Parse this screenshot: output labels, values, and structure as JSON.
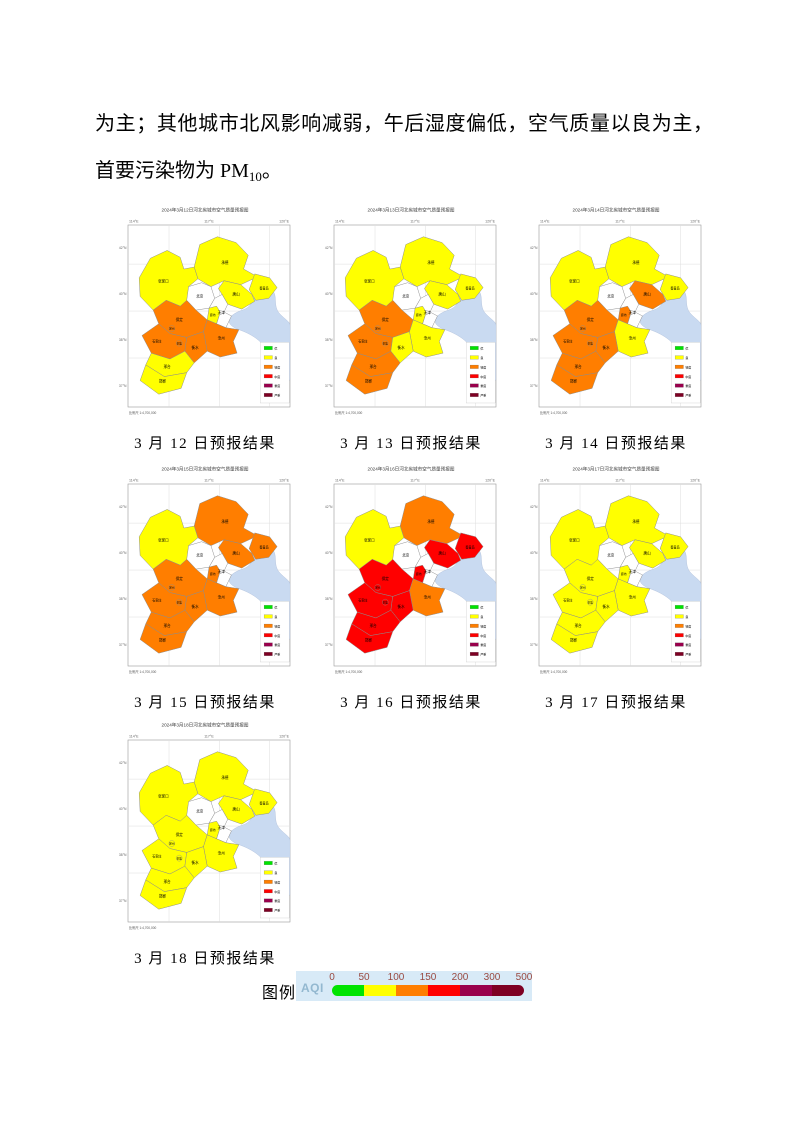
{
  "page": {
    "paragraph": {
      "line1": "为主；其他城市北风影响减弱，午后湿度偏低，空气质量以良为主，",
      "line2_prefix": "首要污染物为 PM",
      "line2_subscript": "10",
      "line2_suffix": "。"
    }
  },
  "aqi_level_colors": {
    "优": "#00E400",
    "良": "#FFFF00",
    "轻度污染": "#FF7E00",
    "中度污染": "#FF0000",
    "重度污染": "#99004C",
    "严重污染": "#7E0023",
    "无": "#FFFFFF"
  },
  "map_common": {
    "axis_top": [
      "114°E",
      "117°E",
      "120°E"
    ],
    "axis_left": [
      "42°N",
      "40°N",
      "38°N",
      "37°N"
    ],
    "scale_note": "比例尺 1:4,700,000",
    "sea_color": "#C9DAF1",
    "mini_legend": [
      {
        "label": "优",
        "color": "#00E400"
      },
      {
        "label": "良",
        "color": "#FFFF00"
      },
      {
        "label": "轻度",
        "color": "#FF7E00"
      },
      {
        "label": "中度",
        "color": "#FF0000"
      },
      {
        "label": "重度",
        "color": "#99004C"
      },
      {
        "label": "严重",
        "color": "#7E0023"
      }
    ],
    "cities": {
      "zhangjiakou": "张家口",
      "chengde": "承德",
      "beijing": "北京",
      "tianjin": "天津",
      "tangshan": "唐山",
      "qinhuangdao": "秦皇岛",
      "langfang": "廊坊",
      "baoding": "保定",
      "cangzhou": "沧州",
      "shijiazhuang": "石家庄",
      "hengshui": "衡水",
      "xingtai": "邢台",
      "handan": "邯郸"
    },
    "sub_city_labels": [
      "定州",
      "辛集"
    ]
  },
  "maps": [
    {
      "title": "2024年3月12日河北省城市空气质量预报图",
      "caption": "3 月 12 日预报结果",
      "levels": {
        "zhangjiakou": "良",
        "chengde": "良",
        "beijing": "无",
        "tianjin": "无",
        "tangshan": "良",
        "qinhuangdao": "良",
        "langfang": "良",
        "baoding": "轻度污染",
        "cangzhou": "轻度污染",
        "shijiazhuang": "轻度污染",
        "hengshui": "轻度污染",
        "xingtai": "良",
        "handan": "良"
      }
    },
    {
      "title": "2024年3月13日河北省城市空气质量预报图",
      "caption": "3 月 13 日预报结果",
      "levels": {
        "zhangjiakou": "良",
        "chengde": "良",
        "beijing": "无",
        "tianjin": "无",
        "tangshan": "良",
        "qinhuangdao": "良",
        "langfang": "良",
        "baoding": "轻度污染",
        "cangzhou": "良",
        "shijiazhuang": "轻度污染",
        "hengshui": "良",
        "xingtai": "轻度污染",
        "handan": "轻度污染"
      }
    },
    {
      "title": "2024年3月14日河北省城市空气质量预报图",
      "caption": "3 月 14 日预报结果",
      "levels": {
        "zhangjiakou": "良",
        "chengde": "良",
        "beijing": "无",
        "tianjin": "无",
        "tangshan": "轻度污染",
        "qinhuangdao": "良",
        "langfang": "轻度污染",
        "baoding": "轻度污染",
        "cangzhou": "良",
        "shijiazhuang": "轻度污染",
        "hengshui": "轻度污染",
        "xingtai": "轻度污染",
        "handan": "轻度污染"
      }
    },
    {
      "title": "2024年3月15日河北省城市空气质量预报图",
      "caption": "3 月 15 日预报结果",
      "levels": {
        "zhangjiakou": "良",
        "chengde": "轻度污染",
        "beijing": "无",
        "tianjin": "无",
        "tangshan": "轻度污染",
        "qinhuangdao": "轻度污染",
        "langfang": "轻度污染",
        "baoding": "轻度污染",
        "cangzhou": "轻度污染",
        "shijiazhuang": "轻度污染",
        "hengshui": "轻度污染",
        "xingtai": "轻度污染",
        "handan": "轻度污染"
      }
    },
    {
      "title": "2024年3月16日河北省城市空气质量预报图",
      "caption": "3 月 16 日预报结果",
      "levels": {
        "zhangjiakou": "良",
        "chengde": "轻度污染",
        "beijing": "无",
        "tianjin": "无",
        "tangshan": "中度污染",
        "qinhuangdao": "中度污染",
        "langfang": "中度污染",
        "baoding": "中度污染",
        "cangzhou": "轻度污染",
        "shijiazhuang": "中度污染",
        "hengshui": "中度污染",
        "xingtai": "中度污染",
        "handan": "中度污染"
      }
    },
    {
      "title": "2024年3月17日河北省城市空气质量预报图",
      "caption": "3 月 17 日预报结果",
      "levels": {
        "zhangjiakou": "良",
        "chengde": "良",
        "beijing": "无",
        "tianjin": "无",
        "tangshan": "良",
        "qinhuangdao": "良",
        "langfang": "良",
        "baoding": "良",
        "cangzhou": "良",
        "shijiazhuang": "良",
        "hengshui": "良",
        "xingtai": "良",
        "handan": "良"
      }
    },
    {
      "title": "2024年3月18日河北省城市空气质量预报图",
      "caption": "3 月 18 日预报结果",
      "levels": {
        "zhangjiakou": "良",
        "chengde": "良",
        "beijing": "无",
        "tianjin": "无",
        "tangshan": "良",
        "qinhuangdao": "良",
        "langfang": "良",
        "baoding": "良",
        "cangzhou": "良",
        "shijiazhuang": "良",
        "hengshui": "良",
        "xingtai": "良",
        "handan": "良"
      }
    }
  ],
  "legend": {
    "label": "图例",
    "aqi_label": "AQI",
    "ticks": [
      "0",
      "50",
      "100",
      "150",
      "200",
      "300",
      "500"
    ],
    "segment_colors": [
      "#00E400",
      "#FFFF00",
      "#FF7E00",
      "#FF0000",
      "#99004C",
      "#7E0023"
    ]
  }
}
